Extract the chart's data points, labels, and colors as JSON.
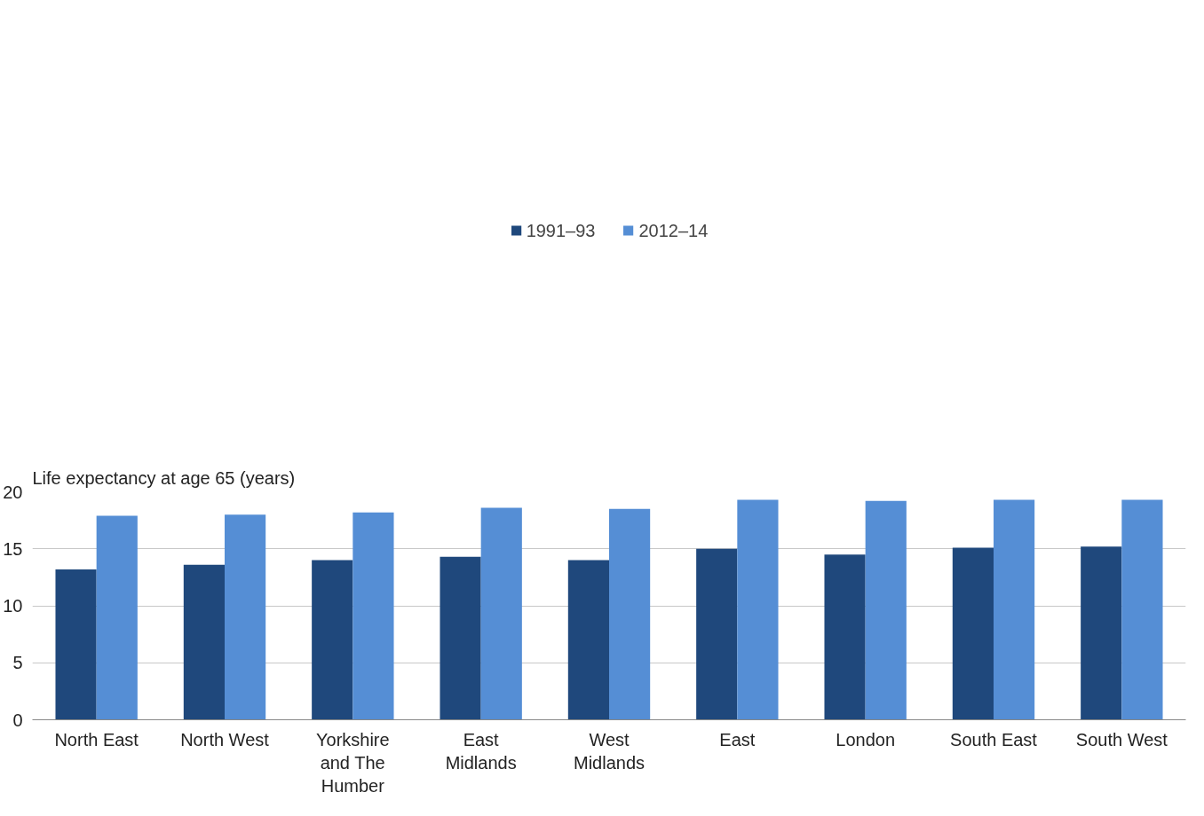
{
  "chart_data": {
    "type": "bar",
    "ylabel": "Life expectancy at age 65 (years)",
    "categories": [
      "North East",
      "North West",
      "Yorkshire and The Humber",
      "East Midlands",
      "West Midlands",
      "East",
      "London",
      "South East",
      "South West"
    ],
    "series": [
      {
        "name": "1991–93",
        "color": "#1f487c",
        "values": [
          13.2,
          13.6,
          14.0,
          14.3,
          14.0,
          15.0,
          14.5,
          15.1,
          15.2
        ]
      },
      {
        "name": "2012–14",
        "color": "#558ed5",
        "values": [
          17.9,
          18.0,
          18.2,
          18.6,
          18.5,
          19.3,
          19.2,
          19.3,
          19.3
        ]
      }
    ],
    "ylim": [
      0,
      20
    ],
    "yticks": [
      0,
      5,
      10,
      15,
      20
    ],
    "grid": "y",
    "legend": "top"
  }
}
